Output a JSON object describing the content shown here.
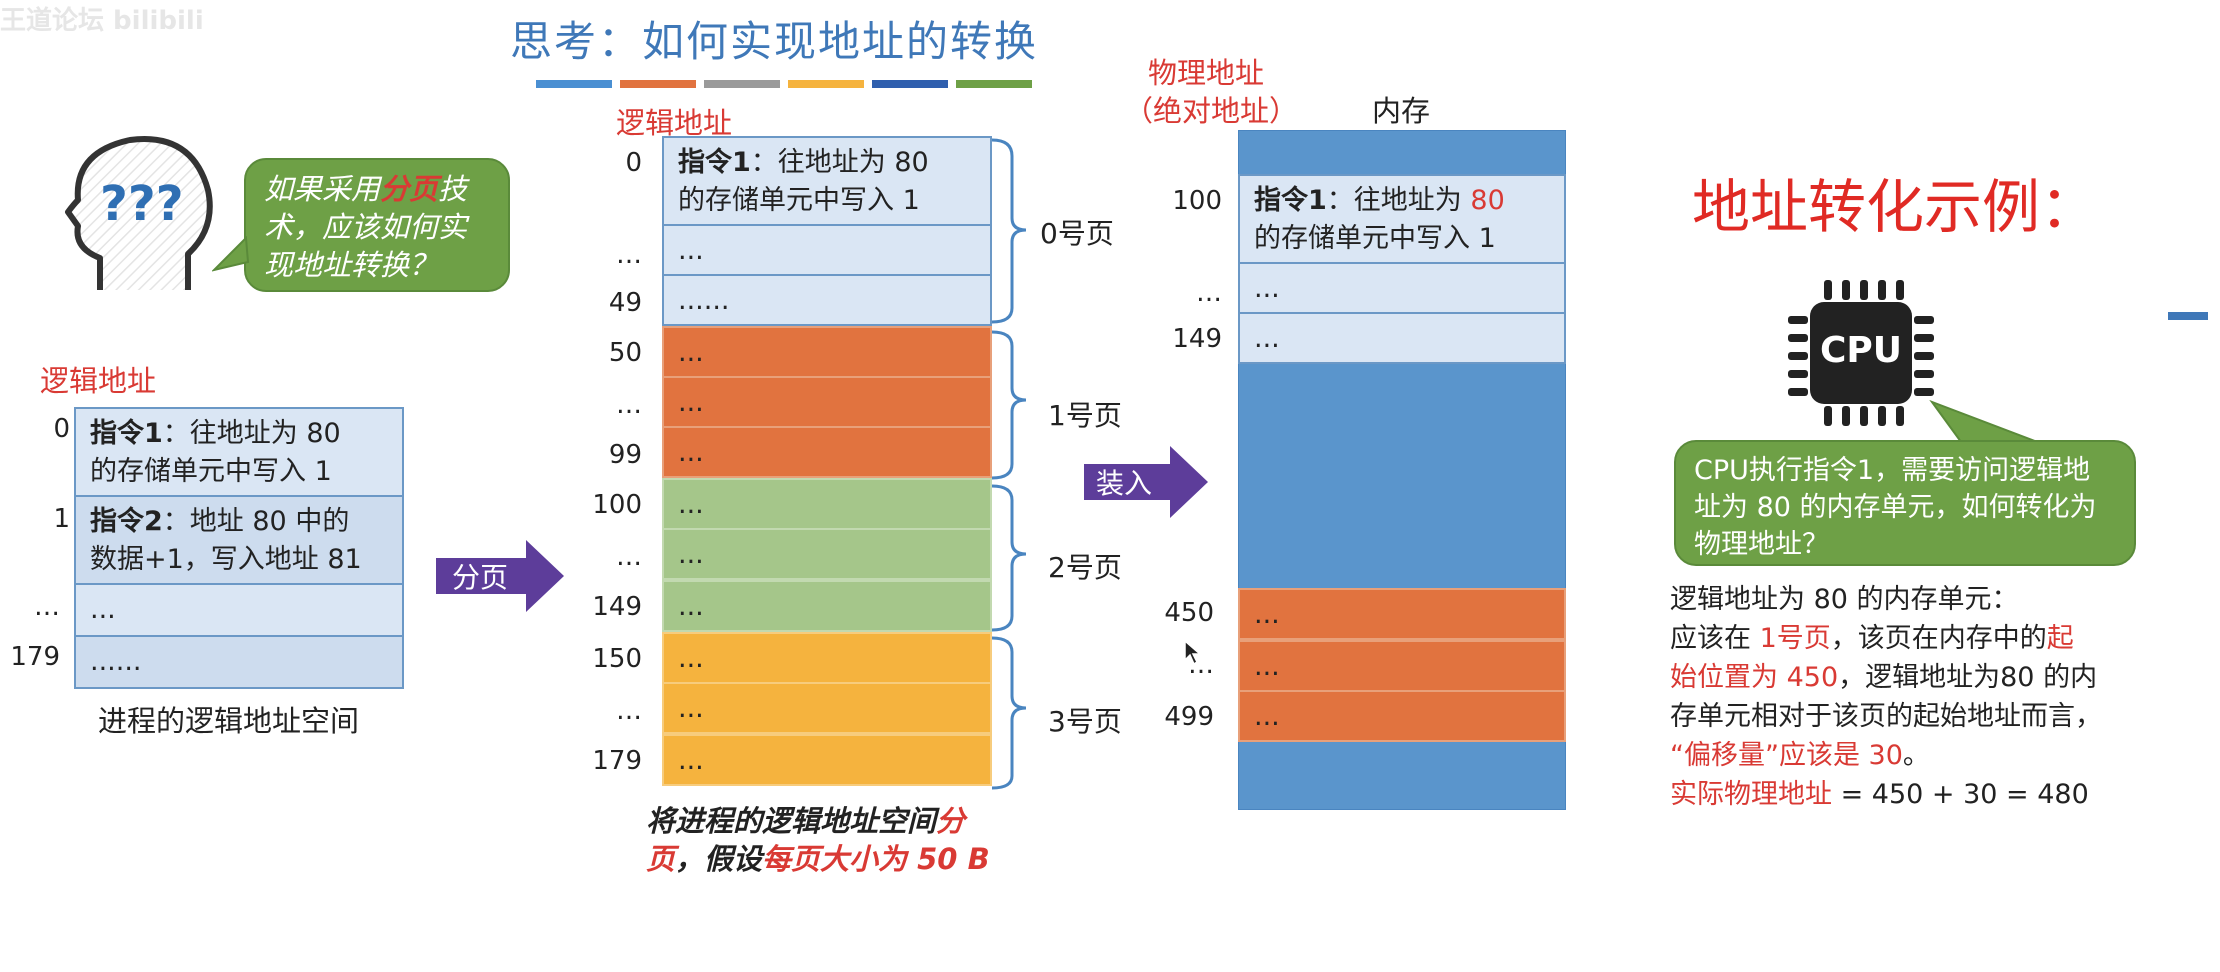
{
  "watermark": "王道论坛 bilibili",
  "title": "思考：如何实现地址的转换",
  "title_bar_colors": [
    "#4a8fd2",
    "#e1733f",
    "#9a9a9a",
    "#f5b33e",
    "#2f5fae",
    "#6ea046"
  ],
  "bubble_left": {
    "pre": "如果采用",
    "highlight": "分页",
    "post": "技术，应该如何实现地址转换？"
  },
  "left_panel": {
    "label": "逻辑地址",
    "rows": [
      {
        "num": "0",
        "bold": "指令1",
        "text": "：往地址为 80",
        "text2": "的存储单元中写入 1"
      },
      {
        "num": "1",
        "bold": "指令2",
        "text": "：地址 80 中的",
        "text2": "数据+1，写入地址 81"
      },
      {
        "num": "…",
        "text": "..."
      },
      {
        "num": "179",
        "text": "......"
      }
    ],
    "caption": "进程的逻辑地址空间"
  },
  "arrow_page": "分页",
  "middle_panel": {
    "label": "逻辑地址",
    "row0": {
      "num": "0",
      "bold": "指令1",
      "text": "：往地址为 80",
      "text2": "的存储单元中写入 1"
    },
    "rows": [
      {
        "num": "…",
        "text": "..."
      },
      {
        "num": "49",
        "text": "......"
      },
      {
        "num": "50",
        "text": "..."
      },
      {
        "num": "…",
        "text": "..."
      },
      {
        "num": "99",
        "text": "..."
      },
      {
        "num": "100",
        "text": "..."
      },
      {
        "num": "…",
        "text": "..."
      },
      {
        "num": "149",
        "text": "..."
      },
      {
        "num": "150",
        "text": "..."
      },
      {
        "num": "…",
        "text": "..."
      },
      {
        "num": "179",
        "text": "..."
      }
    ],
    "pages": [
      "0号页",
      "1号页",
      "2号页",
      "3号页"
    ],
    "caption_l1_pre": "将进程的逻辑地址空间",
    "caption_l1_red": "分",
    "caption_l2_red1": "页",
    "caption_l2_mid": "，假设",
    "caption_l2_red2": "每页大小为 50 B"
  },
  "arrow_load": "装入",
  "memory_panel": {
    "label_line1": "物理地址",
    "label_line2": "（绝对地址）",
    "mem_label": "内存",
    "row100": {
      "num": "100",
      "bold": "指令1",
      "text": "：往地址为 ",
      "red": "80",
      "text2": "的存储单元中写入 1"
    },
    "rows_top": [
      {
        "num": "…",
        "text": "..."
      },
      {
        "num": "149",
        "text": "..."
      }
    ],
    "rows_bottom": [
      {
        "num": "450",
        "text": "..."
      },
      {
        "num": "…",
        "text": "..."
      },
      {
        "num": "499",
        "text": "..."
      }
    ]
  },
  "example_title": "地址转化示例：",
  "cpu_label": "CPU",
  "bubble_right": "CPU执行指令1，需要访问逻辑地址为 80 的内存单元，如何转化为物理地址？",
  "explain": {
    "l1": "逻辑地址为 80 的内存单元：",
    "l2a": "应该在 ",
    "l2b": "1号页",
    "l2c": "，该页在内存中的",
    "l2d": "起",
    "l3a": "始位置为 450",
    "l3b": "，逻辑地址为80 的内",
    "l4": "存单元相对于该页的起始地址而言，",
    "l5a": "“偏移量”应该是 30",
    "l5b": "。",
    "l6a": "实际物理地址",
    "l6b": " = 450 + 30 = 480"
  }
}
